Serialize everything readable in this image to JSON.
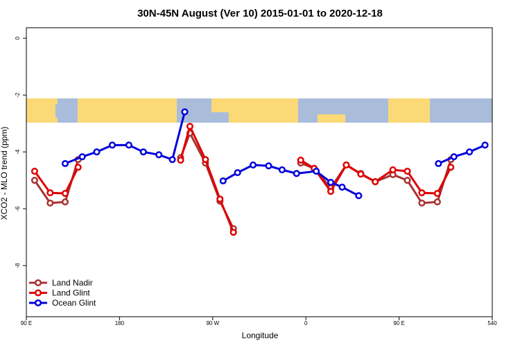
{
  "chart_data": {
    "type": "line",
    "title": "30N-45N August (Ver 10)   2015-01-01 to 2020-12-18",
    "x_label": "Longitude",
    "y_label": "XCO2 - MLO trend (ppm)",
    "xlim": [
      90,
      540
    ],
    "ylim": [
      0.37,
      -9.8
    ],
    "xticks": [
      {
        "value": 90,
        "label": "90 E"
      },
      180,
      {
        "value": 270,
        "label": "90 W"
      },
      {
        "value": 360,
        "label": "0"
      },
      {
        "value": 450,
        "label": "90 E"
      },
      540
    ],
    "yticks": [
      0,
      -2,
      -4,
      -6,
      -8
    ],
    "legend": "bottom-left",
    "series": [
      {
        "name": "Land Nadir",
        "color": "#a83232",
        "x": [
          98,
          113,
          127.5,
          140,
          null,
          239,
          248,
          263,
          277,
          290,
          null,
          355,
          368,
          384,
          399,
          413,
          427,
          444,
          458,
          472,
          487,
          500
        ],
        "values": [
          -5.0,
          -5.8,
          -5.76,
          -4.27,
          null,
          -4.2,
          -3.34,
          -4.39,
          -5.73,
          -6.7,
          null,
          -4.39,
          -4.58,
          -5.27,
          -4.46,
          -4.76,
          -5.05,
          -4.8,
          -5.0,
          -5.8,
          -5.76,
          -4.27
        ]
      },
      {
        "name": "Land Glint",
        "color": "#e00000",
        "x": [
          98,
          113,
          127.5,
          140,
          null,
          239,
          248,
          263,
          277,
          290,
          null,
          355,
          368,
          384,
          399,
          413,
          427,
          444,
          458,
          472,
          487,
          500
        ],
        "values": [
          -4.68,
          -5.44,
          -5.46,
          -4.54,
          null,
          -4.29,
          -3.1,
          -4.27,
          -5.66,
          -6.83,
          null,
          -4.29,
          -4.58,
          -5.39,
          -4.46,
          -4.78,
          -5.05,
          -4.63,
          -4.68,
          -5.44,
          -5.46,
          -4.54
        ]
      },
      {
        "name": "Ocean Glint",
        "color": "#0000dd",
        "x": [
          127.5,
          144,
          158,
          173,
          189,
          203,
          218,
          231,
          243,
          null,
          280,
          294,
          309,
          324,
          337,
          351,
          370,
          384,
          395,
          411,
          null,
          488,
          503,
          518,
          533
        ],
        "values": [
          -4.41,
          -4.17,
          -4.0,
          -3.76,
          -3.76,
          -4.0,
          -4.1,
          -4.27,
          -2.59,
          null,
          -5.02,
          -4.73,
          -4.46,
          -4.49,
          -4.63,
          -4.76,
          -4.68,
          -5.07,
          -5.24,
          -5.54,
          null,
          -4.41,
          -4.17,
          -4.0,
          -3.76
        ]
      }
    ]
  }
}
